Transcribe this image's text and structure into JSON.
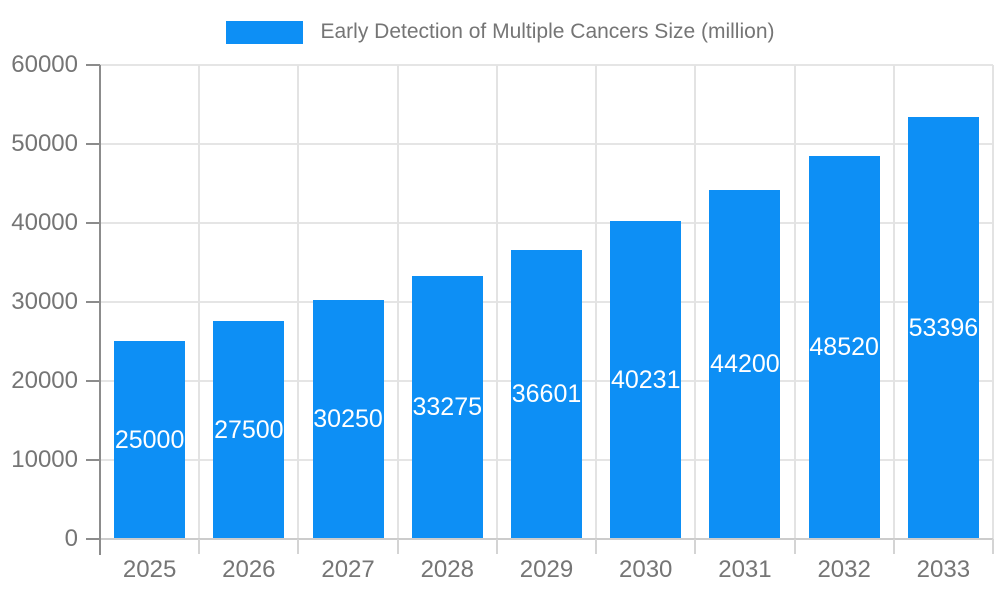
{
  "legend": {
    "label": "Early Detection of Multiple Cancers Size (million)"
  },
  "chart_data": {
    "type": "bar",
    "title": "Early Detection of Multiple Cancers Size (million)",
    "series_name": "Early Detection of Multiple Cancers Size (million)",
    "categories": [
      "2025",
      "2026",
      "2027",
      "2028",
      "2029",
      "2030",
      "2031",
      "2032",
      "2033"
    ],
    "values": [
      25000,
      27500,
      30250,
      33275,
      36601,
      40231,
      44200,
      48520,
      53396
    ],
    "bar_value_labels": [
      "25000",
      "27500",
      "30250",
      "33275",
      "36601",
      "40231",
      "44200",
      "48520",
      "53396"
    ],
    "xlabel": "",
    "ylabel": "",
    "ylim": [
      0,
      60000
    ],
    "yticks": [
      0,
      10000,
      20000,
      30000,
      40000,
      50000,
      60000
    ],
    "ytick_labels": [
      "0",
      "10000",
      "20000",
      "30000",
      "40000",
      "50000",
      "60000"
    ],
    "grid": true,
    "legend_position": "top-center",
    "colors": {
      "bar": "#0d8ff5",
      "bar_value_text": "#ffffff",
      "axis_text": "#757575",
      "gridline": "#e5e5e5",
      "y_axis_line": "#8c8c8c",
      "x_axis_line": "#cccccc"
    }
  }
}
